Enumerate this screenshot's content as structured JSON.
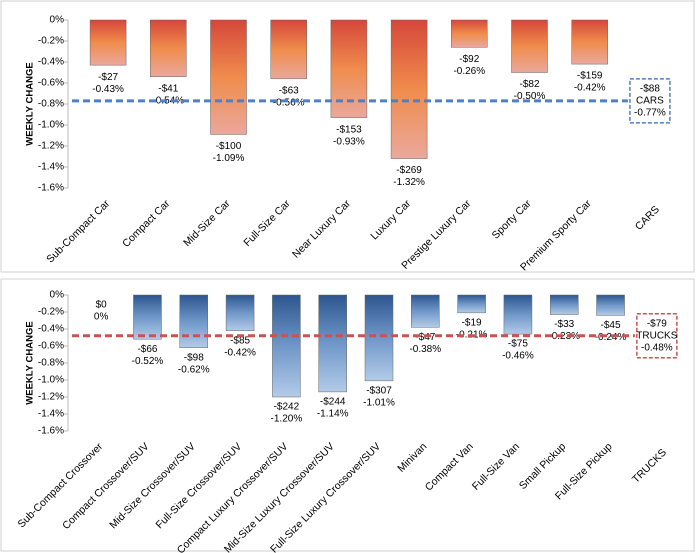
{
  "chart_data": [
    {
      "type": "bar",
      "y_label": "WEEKLY CHANGE",
      "categories": [
        "Sub-Compact Car",
        "Compact Car",
        "Mid-Size Car",
        "Full-Size Car",
        "Near Luxury Car",
        "Luxury Car",
        "Prestige Luxury Car",
        "Sporty Car",
        "Premium Sporty Car"
      ],
      "values": [
        -0.43,
        -0.54,
        -1.09,
        -0.56,
        -0.93,
        -1.32,
        -0.26,
        -0.5,
        -0.42
      ],
      "value_labels": [
        "-0.43%",
        "-0.54%",
        "-1.09%",
        "-0.56%",
        "-0.93%",
        "-1.32%",
        "-0.26%",
        "-0.50%",
        "-0.42%"
      ],
      "dollar_labels": [
        "-$27",
        "-$41",
        "-$100",
        "-$63",
        "-$153",
        "-$269",
        "-$92",
        "-$82",
        "-$159"
      ],
      "average": {
        "label": "CARS",
        "value": -0.77,
        "value_label": "-0.77%",
        "dollar_label": "-$88"
      },
      "colors": [
        "#d5473a",
        "#f08c4c",
        "#eaa89c"
      ],
      "avg_color": "#4f7fc4",
      "ylim": [
        -1.6,
        0
      ],
      "yticks": [
        {
          "value": 0,
          "label": "0%"
        },
        {
          "value": -0.2,
          "label": "-0.2%"
        },
        {
          "value": -0.4,
          "label": "-0.4%"
        },
        {
          "value": -0.6,
          "label": "-0.6%"
        },
        {
          "value": -0.8,
          "label": "-0.8%"
        },
        {
          "value": -1.0,
          "label": "-1.0%"
        },
        {
          "value": -1.2,
          "label": "-1.2%"
        },
        {
          "value": -1.4,
          "label": "-1.4%"
        },
        {
          "value": -1.6,
          "label": "-1.6%"
        }
      ]
    },
    {
      "type": "bar",
      "y_label": "WEEKLY CHANGE",
      "categories": [
        "Sub-Compact Crossover",
        "Compact Crossover/SUV",
        "Mid-Size Crossover/SUV",
        "Full-Size Crossover/SUV",
        "Compact Luxury Crossover/SUV",
        "Mid-Size Luxury Crossover/SUV",
        "Full-Size Luxury Crossover/SUV",
        "Minivan",
        "Compact Van",
        "Full-Size Van",
        "Small Pickup",
        "Full-Size Pickup"
      ],
      "values": [
        0,
        -0.52,
        -0.62,
        -0.42,
        -1.2,
        -1.14,
        -1.01,
        -0.38,
        -0.21,
        -0.46,
        -0.23,
        -0.24
      ],
      "value_labels": [
        "0%",
        "-0.52%",
        "-0.62%",
        "-0.42%",
        "-1.20%",
        "-1.14%",
        "-1.01%",
        "-0.38%",
        "-0.21%",
        "-0.46%",
        "-0.23%",
        "-0.24%"
      ],
      "dollar_labels": [
        "$0",
        "-$66",
        "-$98",
        "-$85",
        "-$242",
        "-$244",
        "-$307",
        "-$47",
        "-$19",
        "-$75",
        "-$33",
        "-$45"
      ],
      "average": {
        "label": "TRUCKS",
        "value": -0.48,
        "value_label": "-0.48%",
        "dollar_label": "-$79"
      },
      "colors": [
        "#2d5690",
        "#6f97c8",
        "#b3cbe8"
      ],
      "avg_color": "#c9534f",
      "ylim": [
        -1.6,
        0
      ],
      "yticks": [
        {
          "value": 0,
          "label": "0%"
        },
        {
          "value": -0.2,
          "label": "-0.2%"
        },
        {
          "value": -0.4,
          "label": "-0.4%"
        },
        {
          "value": -0.6,
          "label": "-0.6%"
        },
        {
          "value": -0.8,
          "label": "-0.8%"
        },
        {
          "value": -1.0,
          "label": "-1.0%"
        },
        {
          "value": -1.2,
          "label": "-1.2%"
        },
        {
          "value": -1.4,
          "label": "-1.4%"
        },
        {
          "value": -1.6,
          "label": "-1.6%"
        }
      ]
    }
  ]
}
